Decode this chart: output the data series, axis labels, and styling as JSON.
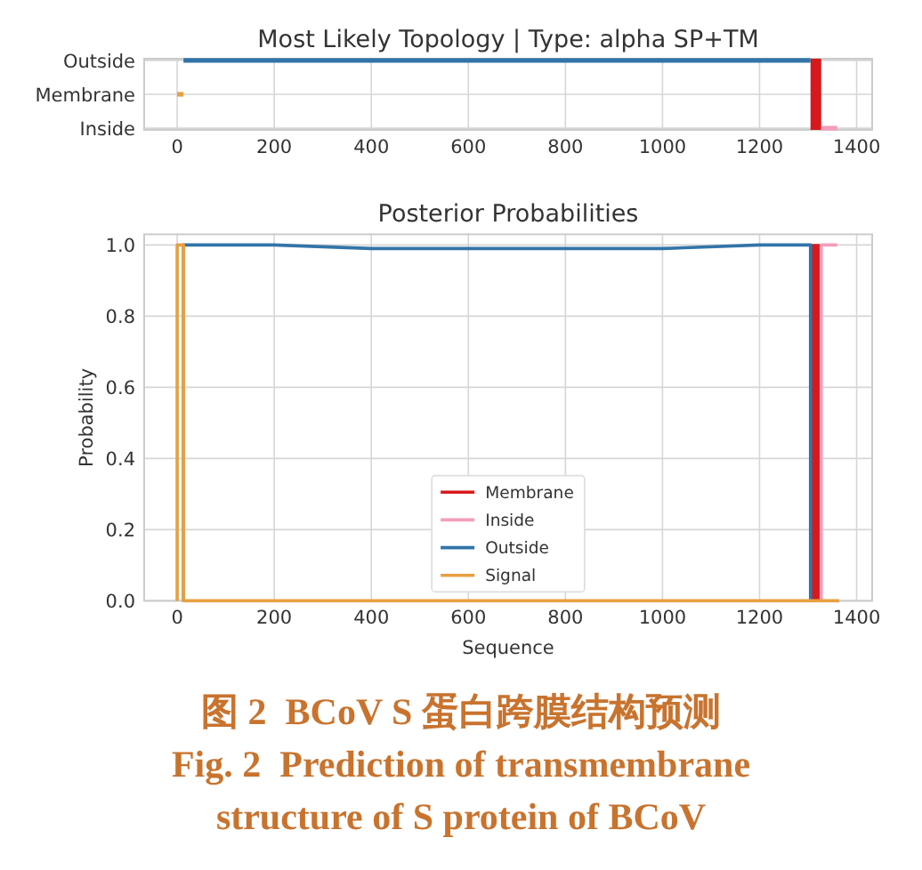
{
  "chart_data": [
    {
      "type": "bar",
      "orientation": "horizontal",
      "title": "Most Likely Topology | Type: alpha SP+TM",
      "categories": [
        "Outside",
        "Membrane",
        "Inside"
      ],
      "xlim": [
        -68,
        1432
      ],
      "xticks": [
        0,
        200,
        400,
        600,
        800,
        1000,
        1200,
        1400
      ],
      "grid": true,
      "series": [
        {
          "color": "#3274a8",
          "base": [
            13,
            null,
            null
          ],
          "values": [
            1292,
            null,
            null
          ]
        },
        {
          "color": "#e8a040",
          "base": [
            null,
            0,
            null
          ],
          "values": [
            null,
            13,
            null
          ]
        },
        {
          "color": "#f29ebc",
          "base": [
            null,
            null,
            1327
          ],
          "values": [
            null,
            null,
            33
          ]
        }
      ],
      "bands": [
        {
          "axis": "x",
          "from": 1305,
          "to": 1327,
          "color": "#d7191c"
        }
      ]
    },
    {
      "type": "line",
      "title": "Posterior Probabilities",
      "xlabel": "Sequence",
      "ylabel": "Probability",
      "xlim": [
        -68,
        1432
      ],
      "xticks": [
        0,
        200,
        400,
        600,
        800,
        1000,
        1200,
        1400
      ],
      "ylim": [
        0,
        1.03
      ],
      "yticks": [
        {
          "value": 0,
          "label": "0.0"
        },
        0.2,
        0.4,
        0.6,
        0.8,
        {
          "value": 1,
          "label": "1.0"
        }
      ],
      "grid": true,
      "legend": "bottom",
      "series": [
        {
          "name": "Membrane",
          "type": "area",
          "color": "#d7191c",
          "x": [
            1305,
            1305,
            1327,
            1327
          ],
          "values": [
            0,
            1,
            1,
            0
          ]
        },
        {
          "name": "Inside",
          "color": "#f29ebc",
          "x": [
            1327,
            1327,
            1360
          ],
          "values": [
            0,
            1,
            1
          ]
        },
        {
          "name": "Outside",
          "color": "#3274a8",
          "x": [
            13,
            13,
            200,
            400,
            600,
            800,
            1000,
            1200,
            1305,
            1305
          ],
          "values": [
            0,
            1,
            1,
            0.99,
            0.99,
            0.99,
            0.99,
            1,
            1,
            0
          ]
        },
        {
          "name": "Signal",
          "color": "#e8a040",
          "x": [
            0,
            0,
            13,
            13,
            1364
          ],
          "values": [
            0,
            1,
            1,
            0,
            0
          ]
        }
      ],
      "annotations": [
        "图 2  BCoV S 蛋白跨膜结构预测",
        "Fig. 2  Prediction of transmembrane structure of S protein of BCoV"
      ]
    }
  ]
}
